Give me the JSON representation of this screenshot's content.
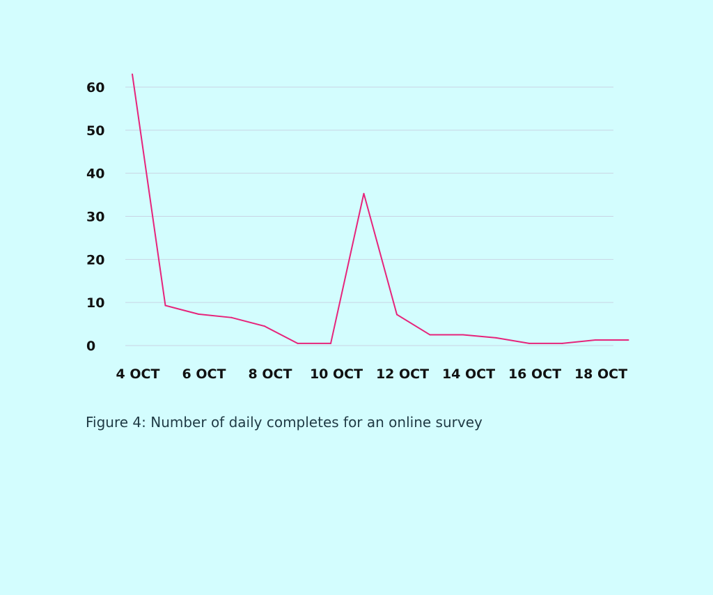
{
  "caption": "Figure 4: Number of daily completes for an online survey",
  "colors": {
    "background": "#d3fdfe",
    "line": "#e6237a",
    "grid": "#c8d4e4",
    "text": "#111111"
  },
  "chart_data": {
    "type": "line",
    "title": "",
    "xlabel": "",
    "ylabel": "",
    "x": [
      "4 OCT",
      "5 OCT",
      "6 OCT",
      "7 OCT",
      "8 OCT",
      "9 OCT",
      "10 OCT",
      "11 OCT",
      "12 OCT",
      "13 OCT",
      "14 OCT",
      "15 OCT",
      "16 OCT",
      "17 OCT",
      "18 OCT",
      "19 OCT"
    ],
    "x_tick_labels": [
      "4 OCT",
      "6 OCT",
      "8 OCT",
      "10 OCT",
      "12 OCT",
      "14 OCT",
      "16 OCT",
      "18 OCT"
    ],
    "series": [
      {
        "values": [
          63,
          9.3,
          7.3,
          6.5,
          4.5,
          0.5,
          0.5,
          35.3,
          7.2,
          2.5,
          2.5,
          1.8,
          0.5,
          0.5,
          1.3,
          1.3
        ]
      }
    ],
    "ylim": [
      0,
      60
    ],
    "yticks": [
      0,
      10,
      20,
      30,
      40,
      50,
      60
    ],
    "grid": true,
    "legend": "none"
  }
}
